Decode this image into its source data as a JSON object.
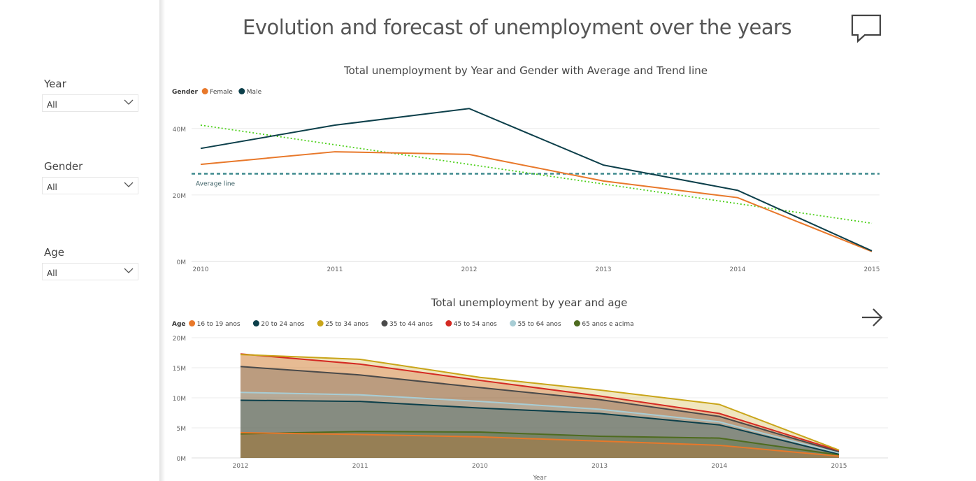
{
  "page": {
    "title": "Evolution and forecast of unemployment over the years"
  },
  "slicers": [
    {
      "title": "Year",
      "value": "All"
    },
    {
      "title": "Gender",
      "value": "All"
    },
    {
      "title": "Age",
      "value": "All"
    }
  ],
  "icons": {
    "comment": "comment-icon",
    "next": "arrow-right-icon",
    "dropdown": "chevron-down-icon"
  },
  "chart_data": [
    {
      "type": "line",
      "title": "Total unemployment by Year and Gender with Average and Trend line",
      "legend_title": "Gender",
      "legend_position": "top-left",
      "x": [
        "2010",
        "2011",
        "2012",
        "2013",
        "2014",
        "2015"
      ],
      "y_ticks": [
        "0M",
        "20M",
        "40M"
      ],
      "ylim": [
        0,
        45000000
      ],
      "grid": true,
      "series": [
        {
          "name": "Female",
          "color": "#E8782A",
          "values": [
            29200000,
            33000000,
            32200000,
            24200000,
            19200000,
            3000000
          ]
        },
        {
          "name": "Male",
          "color": "#0C3F4A",
          "values": [
            34000000,
            41000000,
            46000000,
            29000000,
            21400000,
            3200000
          ]
        }
      ],
      "average_line": {
        "label": "Average line",
        "value": 26400000,
        "color": "#3E8A8E"
      },
      "trend_line": {
        "color": "#4DD01A",
        "start": 41000000,
        "end": 11500000
      }
    },
    {
      "type": "area",
      "title": "Total unemployment by year and age",
      "legend_title": "Age",
      "legend_position": "top-left",
      "xlabel": "Year",
      "x": [
        "2012",
        "2011",
        "2010",
        "2013",
        "2014",
        "2015"
      ],
      "y_ticks": [
        "0M",
        "5M",
        "10M",
        "15M",
        "20M"
      ],
      "ylim": [
        0,
        20000000
      ],
      "grid": true,
      "series": [
        {
          "name": "16 to 19 anos",
          "color": "#E8782A",
          "values": [
            4200000,
            3900000,
            3500000,
            2800000,
            2100000,
            300000
          ]
        },
        {
          "name": "20 to 24 anos",
          "color": "#0C3F4A",
          "values": [
            9600000,
            9400000,
            8300000,
            7400000,
            5500000,
            600000
          ]
        },
        {
          "name": "25 to 34 anos",
          "color": "#C9A51A",
          "values": [
            17200000,
            16400000,
            13400000,
            11300000,
            8900000,
            1300000
          ]
        },
        {
          "name": "35 to 44 anos",
          "color": "#4A4A4A",
          "values": [
            15200000,
            13800000,
            11700000,
            9700000,
            6900000,
            1000000
          ]
        },
        {
          "name": "45 to 54 anos",
          "color": "#D42A23",
          "values": [
            17300000,
            15600000,
            12900000,
            10300000,
            7400000,
            1200000
          ]
        },
        {
          "name": "55 to 64 anos",
          "color": "#A8CDD5",
          "values": [
            10900000,
            10500000,
            9400000,
            8100000,
            6000000,
            800000
          ]
        },
        {
          "name": "65 anos e acima",
          "color": "#4E6B1F",
          "values": [
            4000000,
            4400000,
            4300000,
            3600000,
            3300000,
            500000
          ]
        }
      ]
    }
  ]
}
